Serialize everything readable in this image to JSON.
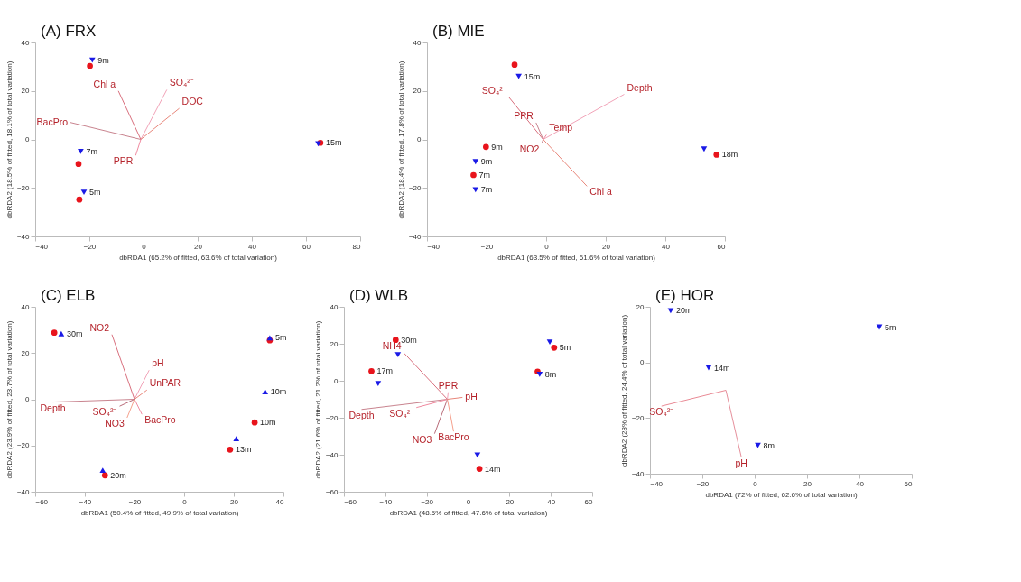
{
  "chart_data": [
    {
      "type": "scatter",
      "title": "(A) FRX",
      "xlabel": "dbRDA1 (65.2% of fitted, 63.6% of total variation)",
      "ylabel": "dbRDA2 (18.5% of fitted, 18.1% of total variation)",
      "xlim": [
        -40,
        80
      ],
      "ylim": [
        -40,
        40
      ],
      "xticks": [
        -40,
        -20,
        0,
        20,
        40,
        60,
        80
      ],
      "yticks": [
        -40,
        -20,
        0,
        20,
        40
      ],
      "series": [
        {
          "type": "line",
          "name": "Chl a",
          "color": "#d9707e",
          "x": [
            -1,
            -9.3
          ],
          "values": [
            0,
            20
          ]
        },
        {
          "type": "line",
          "name": "SO₄²⁻",
          "color": "#f2a3b8",
          "x": [
            -1,
            8.6
          ],
          "values": [
            0,
            20.5
          ]
        },
        {
          "type": "line",
          "name": "DOC",
          "color": "#e8867a",
          "x": [
            -1,
            13.2
          ],
          "values": [
            0,
            12.8
          ]
        },
        {
          "type": "line",
          "name": "BacPro",
          "color": "#c9848f",
          "x": [
            -1,
            -27
          ],
          "values": [
            0,
            7
          ]
        },
        {
          "type": "line",
          "name": "PPR",
          "color": "#f08aa0",
          "x": [
            -1,
            -2.9
          ],
          "values": [
            0,
            -6.6
          ]
        },
        {
          "marker": "circle",
          "color": "#e8141c",
          "x": [
            -19.8,
            -24.0,
            -23.7,
            65.3
          ],
          "values": [
            30.3,
            -10.1,
            -24.8,
            -1.4
          ]
        },
        {
          "marker": "triangle-down",
          "color": "#1a1ae6",
          "x": [
            -18.9,
            -23.2,
            -22.0,
            64.5
          ],
          "values": [
            32.7,
            -5.0,
            -21.8,
            -1.8
          ]
        }
      ],
      "annotations": [
        {
          "text": "9m",
          "x": -18.9,
          "y": 32.7
        },
        {
          "text": "7m",
          "x": -23.2,
          "y": -5.0
        },
        {
          "text": "5m",
          "x": -22.0,
          "y": -21.8
        },
        {
          "text": "15m",
          "x": 65.3,
          "y": -1.4
        }
      ]
    },
    {
      "type": "scatter",
      "title": "(B) MIE",
      "xlabel": "dbRDA1 (63.5% of fitted, 61.6% of total variation)",
      "ylabel": "dbRDA2 (18.4% of fitted, 17.8% of total variation)",
      "xlim": [
        -40,
        60
      ],
      "ylim": [
        -40,
        40
      ],
      "xticks": [
        -40,
        -20,
        0,
        20,
        40,
        60
      ],
      "yticks": [
        -40,
        -20,
        0,
        20,
        40
      ],
      "series": [
        {
          "type": "line",
          "name": "SO₄²⁻",
          "color": "#d9707e",
          "x": [
            -1,
            -12.5
          ],
          "values": [
            0,
            17.4
          ]
        },
        {
          "type": "line",
          "name": "Depth",
          "color": "#f2a3b8",
          "x": [
            -1,
            26.2
          ],
          "values": [
            0,
            18.6
          ]
        },
        {
          "type": "line",
          "name": "Chl a",
          "color": "#e8867a",
          "x": [
            -1,
            13.7
          ],
          "values": [
            0,
            -19.3
          ]
        },
        {
          "type": "line",
          "name": "PPR",
          "color": "#c9848f",
          "x": [
            -1,
            -3.4
          ],
          "values": [
            0,
            6.9
          ]
        },
        {
          "type": "line",
          "name": "Temp",
          "color": "#f08aa0",
          "x": [
            -1,
            0.1
          ],
          "values": [
            0,
            1.9
          ]
        },
        {
          "type": "line",
          "name": "NO2",
          "color": "#b86a78",
          "x": [
            -1,
            -1.4
          ],
          "values": [
            0,
            -1.6
          ]
        },
        {
          "marker": "circle",
          "color": "#e8141c",
          "x": [
            -10.6,
            -20.2,
            -24.4,
            57.2
          ],
          "values": [
            30.8,
            -3.1,
            -14.7,
            -6.3
          ]
        },
        {
          "marker": "triangle-down",
          "color": "#1a1ae6",
          "x": [
            -9.2,
            -23.7,
            -23.7,
            53.0
          ],
          "values": [
            26.0,
            -9.2,
            -20.8,
            -4.0
          ]
        }
      ],
      "annotations": [
        {
          "text": "15m",
          "x": -9.2,
          "y": 26.0
        },
        {
          "text": "9m",
          "x": -20.2,
          "y": -3.1
        },
        {
          "text": "9m",
          "x": -23.7,
          "y": -9.2
        },
        {
          "text": "7m",
          "x": -24.4,
          "y": -14.7
        },
        {
          "text": "7m",
          "x": -23.7,
          "y": -20.8
        },
        {
          "text": "18m",
          "x": 57.2,
          "y": -6.3
        }
      ]
    },
    {
      "type": "scatter",
      "title": "(C) ELB",
      "xlabel": "dbRDA1 (50.4% of fitted, 49.9% of total variation)",
      "ylabel": "dbRDA2 (23.9% of fitted, 23.7% of total variation)",
      "xlim": [
        -60,
        40
      ],
      "ylim": [
        -40,
        40
      ],
      "xticks": [
        -60,
        -40,
        -20,
        0,
        20,
        40
      ],
      "yticks": [
        -40,
        -20,
        0,
        20,
        40
      ],
      "series": [
        {
          "type": "line",
          "name": "NO2",
          "color": "#d9707e",
          "x": [
            -20,
            -29.1
          ],
          "values": [
            0,
            28
          ]
        },
        {
          "type": "line",
          "name": "pH",
          "color": "#f2a3b8",
          "x": [
            -20,
            -14.1
          ],
          "values": [
            0,
            12.6
          ]
        },
        {
          "type": "line",
          "name": "UnPAR",
          "color": "#e8867a",
          "x": [
            -20,
            -15
          ],
          "values": [
            0,
            4
          ]
        },
        {
          "type": "line",
          "name": "Depth",
          "color": "#c9848f",
          "x": [
            -20,
            -52.9
          ],
          "values": [
            0,
            -1.2
          ]
        },
        {
          "type": "line",
          "name": "BacPro",
          "color": "#f08aa0",
          "x": [
            -20,
            -17
          ],
          "values": [
            0,
            -6.5
          ]
        },
        {
          "type": "line",
          "name": "SO₄²⁻",
          "color": "#b86a78",
          "x": [
            -20,
            -26
          ],
          "values": [
            0,
            -3
          ]
        },
        {
          "type": "line",
          "name": "NO3",
          "color": "#f5a08c",
          "x": [
            -20,
            -23
          ],
          "values": [
            0,
            -8
          ]
        },
        {
          "marker": "circle",
          "color": "#e8141c",
          "x": [
            -52.3,
            34.5,
            28.4,
            18.5,
            -31.9
          ],
          "values": [
            28.8,
            25.5,
            -10.0,
            -21.8,
            -32.9
          ]
        },
        {
          "marker": "triangle",
          "color": "#1a1ae6",
          "x": [
            -49.5,
            34.5,
            32.6,
            21.0,
            -32.8
          ],
          "values": [
            28.4,
            26.6,
            3.3,
            -17.0,
            -30.7
          ]
        }
      ],
      "annotations": [
        {
          "text": "30m",
          "x": -49.5,
          "y": 28.4
        },
        {
          "text": "5m",
          "x": 34.5,
          "y": 26.6
        },
        {
          "text": "10m",
          "x": 32.6,
          "y": 3.3
        },
        {
          "text": "10m",
          "x": 28.4,
          "y": -10.0
        },
        {
          "text": "13m",
          "x": 18.5,
          "y": -21.8
        },
        {
          "text": "20m",
          "x": -31.9,
          "y": -32.9
        }
      ]
    },
    {
      "type": "scatter",
      "title": "(D) WLB",
      "xlabel": "dbRDA1 (48.5% of fitted, 47.6% of total variation)",
      "ylabel": "dbRDA2 (21.6% of fitted, 21.2% of total variation)",
      "xlim": [
        -60,
        60
      ],
      "ylim": [
        -60,
        40
      ],
      "xticks": [
        -60,
        -40,
        -20,
        0,
        20,
        40,
        60
      ],
      "yticks": [
        -60,
        -40,
        -20,
        0,
        20,
        40
      ],
      "series": [
        {
          "type": "line",
          "name": "NH4",
          "color": "#d9707e",
          "x": [
            -10,
            -30.9
          ],
          "values": [
            -10,
            14.9
          ]
        },
        {
          "type": "line",
          "name": "PPR",
          "color": "#f2a3b8",
          "x": [
            -10,
            -9.6
          ],
          "values": [
            -10,
            -6.2
          ]
        },
        {
          "type": "line",
          "name": "pH",
          "color": "#e8867a",
          "x": [
            -10,
            -2.7
          ],
          "values": [
            -10,
            -9
          ]
        },
        {
          "type": "line",
          "name": "Depth",
          "color": "#c9848f",
          "x": [
            -10,
            -51.5
          ],
          "values": [
            -10,
            -15.5
          ]
        },
        {
          "type": "line",
          "name": "SO₄²⁻",
          "color": "#f08aa0",
          "x": [
            -10,
            -25
          ],
          "values": [
            -10,
            -14.5
          ]
        },
        {
          "type": "line",
          "name": "NO3",
          "color": "#b86a78",
          "x": [
            -10,
            -16.2
          ],
          "values": [
            -10,
            -28.6
          ]
        },
        {
          "type": "line",
          "name": "BacPro",
          "color": "#f5a08c",
          "x": [
            -10,
            -7
          ],
          "values": [
            -10,
            -27.4
          ]
        },
        {
          "marker": "circle",
          "color": "#e8141c",
          "x": [
            -35.0,
            -46.7,
            33.6,
            41.6,
            5.5
          ],
          "values": [
            22.1,
            5.2,
            5.0,
            17.9,
            -47.6
          ]
        },
        {
          "marker": "triangle-down",
          "color": "#1a1ae6",
          "x": [
            -33.9,
            -43.5,
            39.5,
            34.6,
            4.5
          ],
          "values": [
            14.1,
            -1.5,
            20.9,
            3.5,
            -40.2
          ]
        }
      ],
      "annotations": [
        {
          "text": "30m",
          "x": -35.0,
          "y": 22.1
        },
        {
          "text": "17m",
          "x": -46.7,
          "y": 5.2
        },
        {
          "text": "5m",
          "x": 41.6,
          "y": 17.9
        },
        {
          "text": "8m",
          "x": 34.6,
          "y": 3.5
        },
        {
          "text": "14m",
          "x": 5.5,
          "y": -47.6
        }
      ]
    },
    {
      "type": "scatter",
      "title": "(E) HOR",
      "xlabel": "dbRDA1 (72% of fitted, 62.6% of total variation)",
      "ylabel": "dbRDA2 (28% of fitted, 24.4% of total variation)",
      "xlim": [
        -40,
        60
      ],
      "ylim": [
        -40,
        20
      ],
      "xticks": [
        -40,
        -20,
        0,
        20,
        40,
        60
      ],
      "yticks": [
        -40,
        -20,
        0,
        20
      ],
      "series": [
        {
          "type": "line",
          "name": "SO₄²⁻",
          "color": "#e98a95",
          "x": [
            -11,
            -35.6
          ],
          "values": [
            -10,
            -15.7
          ]
        },
        {
          "type": "line",
          "name": "pH",
          "color": "#e6909c",
          "x": [
            -11,
            -5.1
          ],
          "values": [
            -10,
            -34.1
          ]
        },
        {
          "marker": "triangle-down",
          "color": "#1a1ae6",
          "x": [
            -32.1,
            47.6,
            -17.6,
            1.2
          ],
          "values": [
            18.6,
            12.7,
            -1.9,
            -29.8
          ]
        }
      ],
      "annotations": [
        {
          "text": "20m",
          "x": -32.1,
          "y": 18.6
        },
        {
          "text": "5m",
          "x": 47.6,
          "y": 12.7
        },
        {
          "text": "14m",
          "x": -17.6,
          "y": -1.9
        },
        {
          "text": "8m",
          "x": 1.2,
          "y": -29.8
        }
      ]
    }
  ]
}
